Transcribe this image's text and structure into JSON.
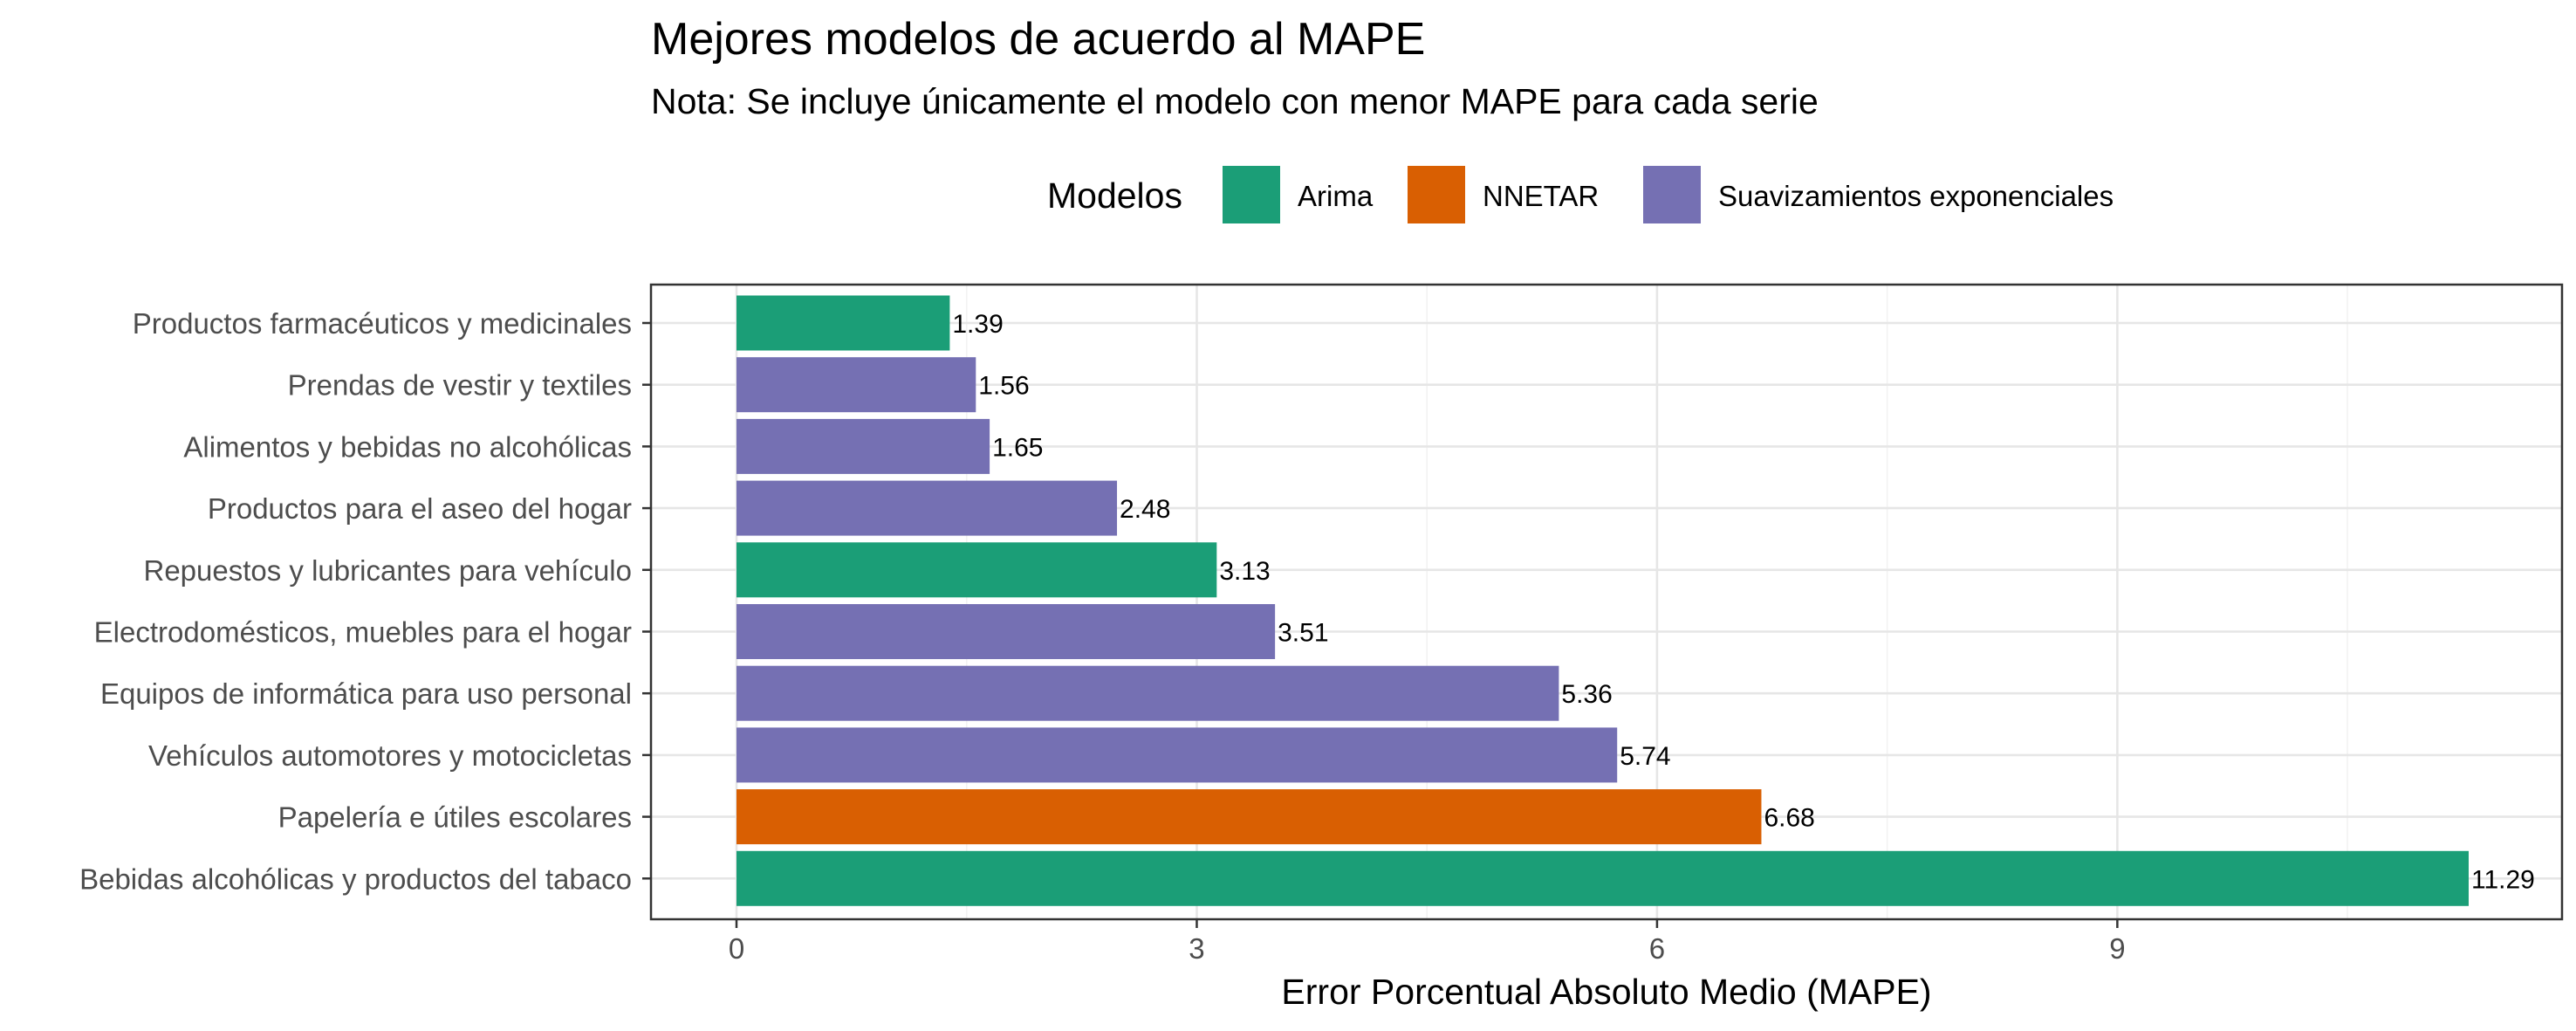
{
  "chart_data": {
    "type": "bar",
    "orientation": "horizontal",
    "title": "Mejores modelos de acuerdo al MAPE",
    "subtitle": "Nota: Se incluye únicamente el modelo con menor MAPE para cada serie",
    "xlabel": "Error Porcentual Absoluto Medio (MAPE)",
    "ylabel": "",
    "xlim": [
      -1.5,
      11.29
    ],
    "xticks": [
      0,
      3,
      6,
      9
    ],
    "grid": true,
    "legend": {
      "title": "Modelos",
      "position": "top",
      "entries": [
        {
          "name": "Arima",
          "color": "#1b9e77"
        },
        {
          "name": "NNETAR",
          "color": "#d95f02"
        },
        {
          "name": "Suavizamientos exponenciales",
          "color": "#7570b3"
        }
      ]
    },
    "categories": [
      "Productos farmacéuticos y medicinales",
      "Prendas de vestir y textiles",
      "Alimentos y bebidas no alcohólicas",
      "Productos para el aseo del hogar",
      "Repuestos y lubricantes para vehículo",
      "Electrodomésticos, muebles para el hogar",
      "Equipos de informática para uso personal",
      "Vehículos automotores y motocicletas",
      "Papelería e útiles escolares",
      "Bebidas alcohólicas y productos del tabaco"
    ],
    "values": [
      1.39,
      1.56,
      1.65,
      2.48,
      3.13,
      3.51,
      5.36,
      5.74,
      6.68,
      11.29
    ],
    "labels": [
      "1.39",
      "1.56",
      "1.65",
      "2.48",
      "3.13",
      "3.51",
      "5.36",
      "5.74",
      "6.68",
      "11.29"
    ],
    "models": [
      "Arima",
      "Suavizamientos exponenciales",
      "Suavizamientos exponenciales",
      "Suavizamientos exponenciales",
      "Arima",
      "Suavizamientos exponenciales",
      "Suavizamientos exponenciales",
      "Suavizamientos exponenciales",
      "NNETAR",
      "Arima"
    ]
  }
}
